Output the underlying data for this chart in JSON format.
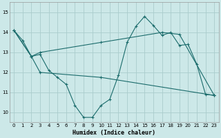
{
  "xlabel": "Humidex (Indice chaleur)",
  "bg_color": "#cce8e8",
  "grid_color": "#aacccc",
  "line_color": "#1a6b6b",
  "xlim": [
    -0.5,
    23.5
  ],
  "ylim": [
    9.5,
    15.5
  ],
  "yticks": [
    10,
    11,
    12,
    13,
    14,
    15
  ],
  "xticks": [
    0,
    1,
    2,
    3,
    4,
    5,
    6,
    7,
    8,
    9,
    10,
    11,
    12,
    13,
    14,
    15,
    16,
    17,
    18,
    19,
    20,
    21,
    22,
    23
  ],
  "line1_x": [
    0,
    1,
    2,
    3,
    4,
    5,
    6,
    7,
    8,
    9,
    10,
    11,
    12,
    13,
    14,
    15,
    16,
    17,
    18,
    19,
    20,
    21,
    22,
    23
  ],
  "line1_y": [
    14.1,
    13.6,
    12.8,
    12.9,
    12.1,
    11.75,
    11.4,
    10.35,
    9.75,
    9.75,
    10.35,
    10.65,
    11.85,
    13.5,
    14.3,
    14.8,
    14.35,
    13.85,
    14.0,
    13.35,
    13.4,
    12.4,
    10.9,
    10.85
  ],
  "line2_x": [
    0,
    2,
    3,
    10,
    23
  ],
  "line2_y": [
    14.1,
    12.8,
    12.0,
    11.75,
    10.85
  ],
  "line3_x": [
    0,
    2,
    3,
    10,
    17,
    19,
    23
  ],
  "line3_y": [
    14.1,
    12.8,
    13.0,
    13.5,
    14.0,
    13.9,
    10.85
  ]
}
